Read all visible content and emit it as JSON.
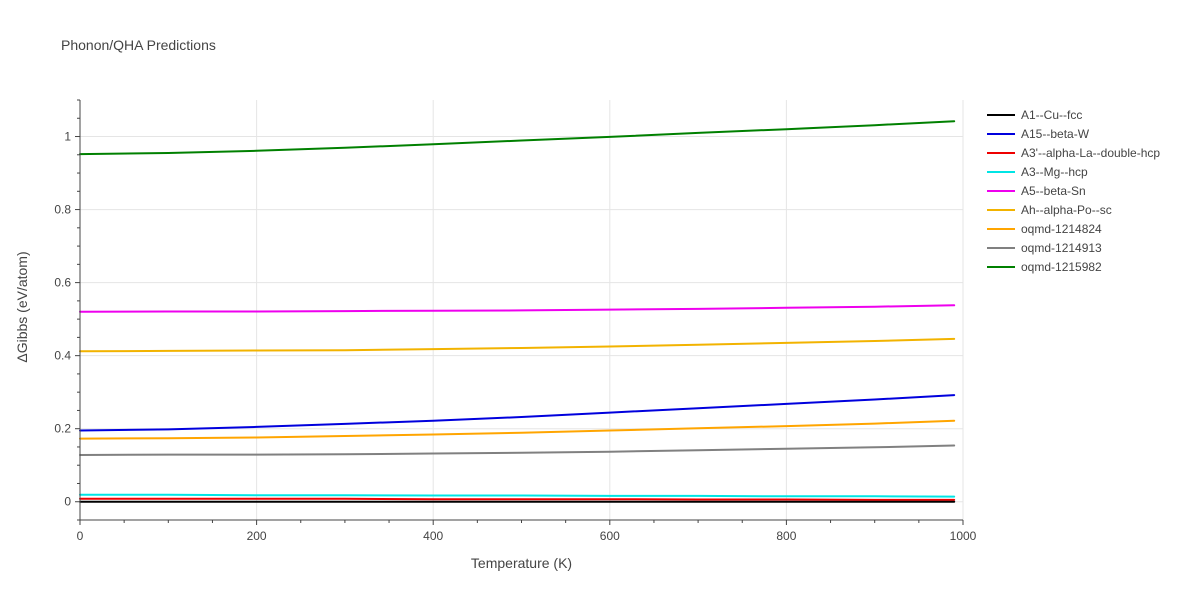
{
  "chart_data": {
    "type": "line",
    "title": "Phonon/QHA Predictions",
    "xlabel": "Temperature (K)",
    "ylabel": "ΔGibbs (eV/atom)",
    "xlim": [
      0,
      1000
    ],
    "ylim": [
      -0.05,
      1.1
    ],
    "xticks": [
      0,
      200,
      400,
      600,
      800,
      1000
    ],
    "yticks": [
      0,
      0.2,
      0.4,
      0.6,
      0.8,
      1
    ],
    "xtick_labels": [
      "0",
      "200",
      "400",
      "600",
      "800",
      "1000"
    ],
    "ytick_labels": [
      "0",
      "0.2",
      "0.4",
      "0.6",
      "0.8",
      "1"
    ],
    "grid": true,
    "legend_position": "right",
    "x": [
      0,
      100,
      200,
      300,
      400,
      500,
      600,
      700,
      800,
      900,
      990
    ],
    "series": [
      {
        "name": "A1--Cu--fcc",
        "color": "#000000",
        "values": [
          0,
          0,
          0,
          0,
          0,
          0,
          0,
          0,
          0,
          0,
          0
        ]
      },
      {
        "name": "A15--beta-W",
        "color": "#0000dd",
        "values": [
          0.195,
          0.198,
          0.205,
          0.213,
          0.222,
          0.232,
          0.244,
          0.256,
          0.268,
          0.28,
          0.292
        ]
      },
      {
        "name": "A3'--alpha-La--double-hcp",
        "color": "#ee0000",
        "values": [
          0.008,
          0.008,
          0.008,
          0.008,
          0.007,
          0.007,
          0.007,
          0.006,
          0.006,
          0.005,
          0.005
        ]
      },
      {
        "name": "A3--Mg--hcp",
        "color": "#00e5e5",
        "values": [
          0.019,
          0.019,
          0.018,
          0.018,
          0.017,
          0.017,
          0.016,
          0.016,
          0.015,
          0.015,
          0.014
        ]
      },
      {
        "name": "A5--beta-Sn",
        "color": "#ee00ee",
        "values": [
          0.52,
          0.521,
          0.521,
          0.522,
          0.523,
          0.524,
          0.526,
          0.528,
          0.531,
          0.534,
          0.538
        ]
      },
      {
        "name": "Ah--alpha-Po--sc",
        "color": "#f2b300",
        "values": [
          0.412,
          0.413,
          0.414,
          0.415,
          0.418,
          0.421,
          0.425,
          0.43,
          0.435,
          0.44,
          0.446
        ]
      },
      {
        "name": "oqmd-1214824",
        "color": "#ffa500",
        "values": [
          0.173,
          0.174,
          0.176,
          0.18,
          0.184,
          0.189,
          0.195,
          0.201,
          0.207,
          0.214,
          0.222
        ]
      },
      {
        "name": "oqmd-1214913",
        "color": "#808080",
        "values": [
          0.128,
          0.129,
          0.129,
          0.13,
          0.132,
          0.134,
          0.137,
          0.141,
          0.145,
          0.149,
          0.154
        ]
      },
      {
        "name": "oqmd-1215982",
        "color": "#008000",
        "values": [
          0.952,
          0.955,
          0.961,
          0.969,
          0.979,
          0.989,
          0.999,
          1.01,
          1.02,
          1.031,
          1.042
        ]
      }
    ]
  }
}
